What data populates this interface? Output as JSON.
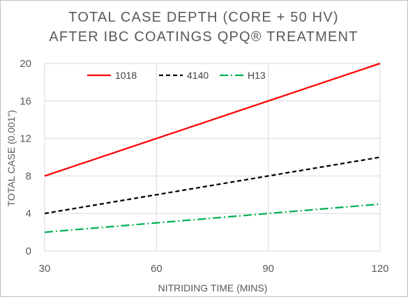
{
  "chart_data": {
    "type": "line",
    "title_line1": "TOTAL CASE DEPTH (CORE + 50 HV)",
    "title_line2": "AFTER IBC COATINGS QPQ® TREATMENT",
    "xlabel": "NITRIDING TIME (MINS)",
    "ylabel": "TOTAL CASE (0.001\")",
    "xlim": [
      30,
      120
    ],
    "ylim": [
      0,
      20
    ],
    "x_ticks": [
      30,
      60,
      90,
      120
    ],
    "y_ticks": [
      0,
      4,
      8,
      12,
      16,
      20
    ],
    "grid": "horizontal and vertical",
    "legend_position": "top-left",
    "series": [
      {
        "name": "1018",
        "color": "#ff0000",
        "dash": "solid",
        "x": [
          30,
          120
        ],
        "y": [
          8,
          20
        ]
      },
      {
        "name": "4140",
        "color": "#000000",
        "dash": "dashed",
        "x": [
          30,
          120
        ],
        "y": [
          4,
          10
        ]
      },
      {
        "name": "H13",
        "color": "#00b050",
        "dash": "dash-dot",
        "x": [
          30,
          120
        ],
        "y": [
          2,
          5
        ]
      }
    ]
  }
}
